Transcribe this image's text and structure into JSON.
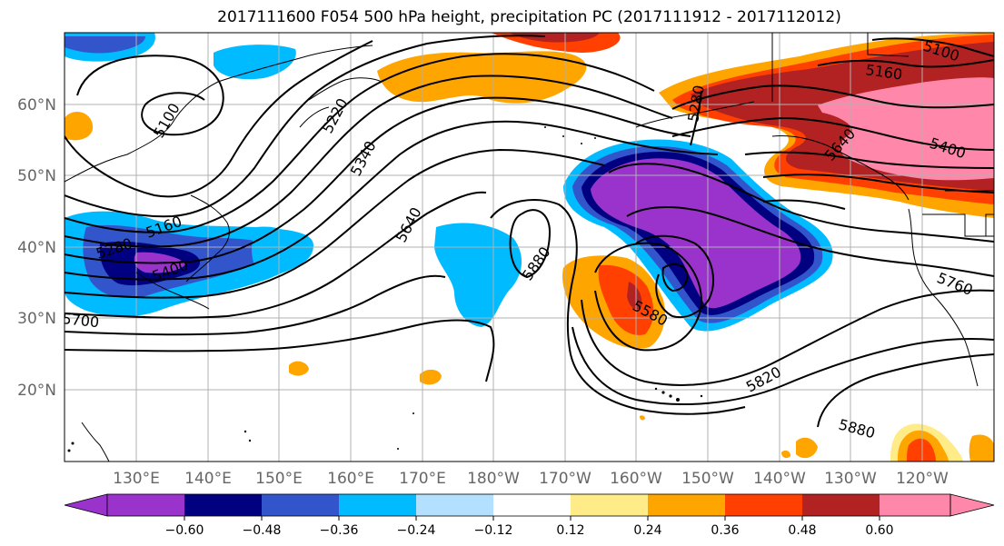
{
  "title": "2017111600 F054 500 hPa height, precipitation PC (2017111912 - 2017112012)",
  "lon_labels": [
    "130°E",
    "140°E",
    "150°E",
    "160°E",
    "170°E",
    "180°W",
    "170°W",
    "160°W",
    "150°W",
    "140°W",
    "130°W",
    "120°W"
  ],
  "lat_labels": [
    "60°N",
    "50°N",
    "40°N",
    "30°N",
    "20°N"
  ],
  "contour_labels": [
    {
      "id": "lbl-5100-a",
      "text": "5100"
    },
    {
      "id": "lbl-5220",
      "text": "5220"
    },
    {
      "id": "lbl-5340",
      "text": "5340"
    },
    {
      "id": "lbl-5160-a",
      "text": "5160"
    },
    {
      "id": "lbl-5280-a",
      "text": "5280"
    },
    {
      "id": "lbl-5400-a",
      "text": "5400"
    },
    {
      "id": "lbl-5700",
      "text": "5700"
    },
    {
      "id": "lbl-5640",
      "text": "5640"
    },
    {
      "id": "lbl-5880-a",
      "text": "5880"
    },
    {
      "id": "lbl-5580",
      "text": "5580"
    },
    {
      "id": "lbl-5820",
      "text": "5820"
    },
    {
      "id": "lbl-5880-b",
      "text": "5880"
    },
    {
      "id": "lbl-5760",
      "text": "5760"
    },
    {
      "id": "lbl-5400-b",
      "text": "5400"
    },
    {
      "id": "lbl-5160-b",
      "text": "5160"
    },
    {
      "id": "lbl-5100-b",
      "text": "5100"
    },
    {
      "id": "lbl-5280-b",
      "text": "5280"
    },
    {
      "id": "lbl-5640-b",
      "text": "5640"
    }
  ],
  "colorbar": {
    "colors": [
      "#9933cc",
      "#000080",
      "#3355cc",
      "#00bbff",
      "#b3e0ff",
      "#ffffff",
      "#ffec88",
      "#ffa500",
      "#ff4000",
      "#b22222",
      "#ff88aa"
    ],
    "tick_labels": [
      "−0.60",
      "−0.48",
      "−0.36",
      "−0.24",
      "−0.12",
      "0.12",
      "0.24",
      "0.36",
      "0.48",
      "0.60"
    ]
  },
  "colors": {
    "purple": "#9933cc",
    "navy": "#000080",
    "blue": "#3355cc",
    "cyan": "#00bbff",
    "lightblue": "#b3e0ff",
    "yellow": "#ffec88",
    "orange": "#ffa500",
    "redorange": "#ff4000",
    "firebrick": "#b22222",
    "pink": "#ff88aa"
  }
}
